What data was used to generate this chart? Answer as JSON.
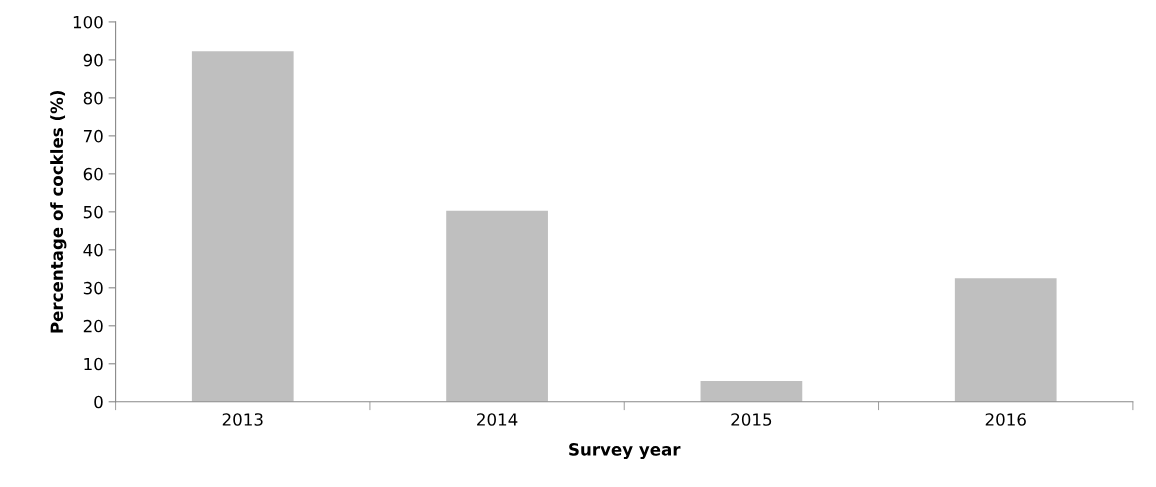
{
  "chart_data": {
    "type": "bar",
    "xlabel": "Survey year",
    "ylabel": "Percentage of cockles (%)",
    "categories": [
      "2013",
      "2014",
      "2015",
      "2016"
    ],
    "values": [
      92.3,
      50.3,
      5.5,
      32.5
    ],
    "color": "#bfbfbf",
    "ylim": [
      0,
      100
    ],
    "yticks": [
      0,
      10,
      20,
      30,
      40,
      50,
      60,
      70,
      80,
      90,
      100
    ],
    "grid": false,
    "legend": false
  }
}
